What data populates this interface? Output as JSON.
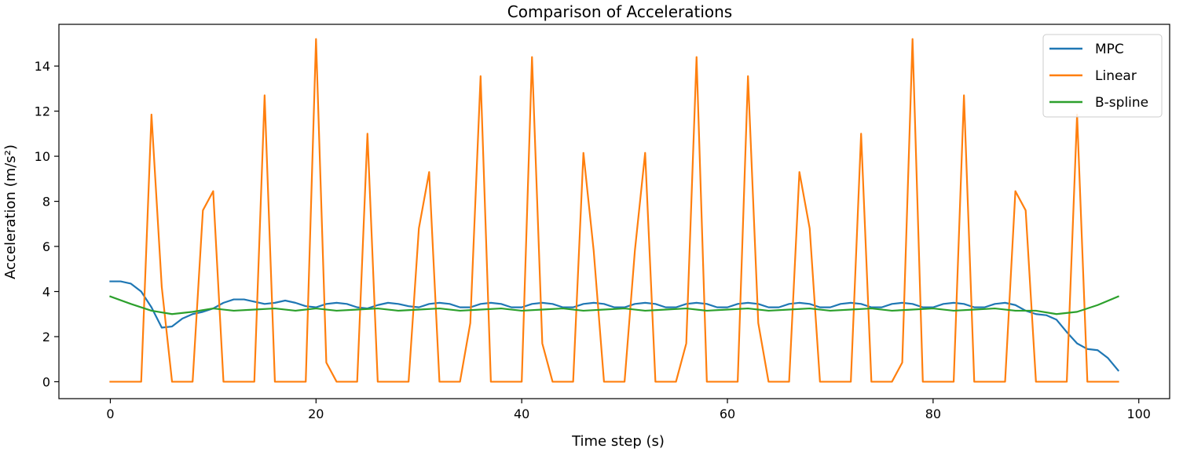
{
  "chart_data": {
    "type": "line",
    "title": "Comparison of Accelerations",
    "xlabel": "Time step (s)",
    "ylabel": "Acceleration (m/s²)",
    "xlim": [
      -5,
      103
    ],
    "ylim": [
      -0.75,
      15.85
    ],
    "xticks": [
      0,
      20,
      40,
      60,
      80,
      100
    ],
    "yticks": [
      0,
      2,
      4,
      6,
      8,
      10,
      12,
      14
    ],
    "grid": false,
    "legend_position": "top-right",
    "series": [
      {
        "name": "MPC",
        "color": "#1f77b4",
        "x": [
          0,
          1,
          2,
          3,
          4,
          5,
          6,
          7,
          8,
          9,
          10,
          11,
          12,
          13,
          14,
          15,
          16,
          17,
          18,
          19,
          20,
          21,
          22,
          23,
          24,
          25,
          26,
          27,
          28,
          29,
          30,
          31,
          32,
          33,
          34,
          35,
          36,
          37,
          38,
          39,
          40,
          41,
          42,
          43,
          44,
          45,
          46,
          47,
          48,
          49,
          50,
          51,
          52,
          53,
          54,
          55,
          56,
          57,
          58,
          59,
          60,
          61,
          62,
          63,
          64,
          65,
          66,
          67,
          68,
          69,
          70,
          71,
          72,
          73,
          74,
          75,
          76,
          77,
          78,
          79,
          80,
          81,
          82,
          83,
          84,
          85,
          86,
          87,
          88,
          89,
          90,
          91,
          92,
          93,
          94,
          95,
          96,
          97,
          98
        ],
        "y": [
          4.45,
          4.45,
          4.35,
          4.0,
          3.3,
          2.4,
          2.45,
          2.8,
          3.0,
          3.1,
          3.25,
          3.5,
          3.65,
          3.65,
          3.55,
          3.45,
          3.5,
          3.6,
          3.5,
          3.35,
          3.3,
          3.45,
          3.5,
          3.45,
          3.3,
          3.25,
          3.4,
          3.5,
          3.45,
          3.35,
          3.3,
          3.45,
          3.5,
          3.45,
          3.3,
          3.3,
          3.45,
          3.5,
          3.45,
          3.3,
          3.3,
          3.45,
          3.5,
          3.45,
          3.3,
          3.3,
          3.45,
          3.5,
          3.45,
          3.3,
          3.3,
          3.45,
          3.5,
          3.45,
          3.3,
          3.3,
          3.45,
          3.5,
          3.45,
          3.3,
          3.3,
          3.45,
          3.5,
          3.45,
          3.3,
          3.3,
          3.45,
          3.5,
          3.45,
          3.3,
          3.3,
          3.45,
          3.5,
          3.45,
          3.3,
          3.3,
          3.45,
          3.5,
          3.45,
          3.3,
          3.3,
          3.45,
          3.5,
          3.45,
          3.3,
          3.3,
          3.45,
          3.5,
          3.4,
          3.15,
          3.0,
          2.95,
          2.75,
          2.2,
          1.7,
          1.45,
          1.4,
          1.05,
          0.5
        ]
      },
      {
        "name": "Linear",
        "color": "#ff7f0e",
        "x": [
          0,
          1,
          2,
          3,
          4,
          5,
          6,
          7,
          8,
          9,
          10,
          11,
          12,
          13,
          14,
          15,
          16,
          17,
          18,
          19,
          20,
          21,
          22,
          23,
          24,
          25,
          26,
          27,
          28,
          29,
          30,
          31,
          32,
          33,
          34,
          35,
          36,
          37,
          38,
          39,
          40,
          41,
          42,
          43,
          44,
          45,
          46,
          47,
          48,
          49,
          50,
          51,
          52,
          53,
          54,
          55,
          56,
          57,
          58,
          59,
          60,
          61,
          62,
          63,
          64,
          65,
          66,
          67,
          68,
          69,
          70,
          71,
          72,
          73,
          74,
          75,
          76,
          77,
          78,
          79,
          80,
          81,
          82,
          83,
          84,
          85,
          86,
          87,
          88,
          89,
          90,
          91,
          92,
          93,
          94,
          95,
          96,
          97,
          98
        ],
        "y": [
          0,
          0,
          0,
          0,
          11.85,
          4.2,
          0,
          0,
          0,
          7.6,
          8.45,
          0,
          0,
          0,
          0,
          12.7,
          0,
          0,
          0,
          0,
          15.2,
          0.85,
          0,
          0,
          0,
          11.0,
          0,
          0,
          0,
          0,
          6.8,
          9.3,
          0,
          0,
          0,
          2.6,
          13.55,
          0,
          0,
          0,
          0,
          14.4,
          1.7,
          0,
          0,
          0,
          10.15,
          5.8,
          0,
          0,
          0,
          5.8,
          10.15,
          0,
          0,
          0,
          1.7,
          14.4,
          0,
          0,
          0,
          0,
          13.55,
          2.6,
          0,
          0,
          0,
          9.3,
          6.8,
          0,
          0,
          0,
          0,
          11.0,
          0,
          0,
          0,
          0.85,
          15.2,
          0,
          0,
          0,
          0,
          12.7,
          0,
          0,
          0,
          0,
          8.45,
          7.6,
          0,
          0,
          0,
          0,
          11.85,
          0,
          0,
          0,
          0
        ]
      },
      {
        "name": "B-spline",
        "color": "#2ca02c",
        "x": [
          0,
          2,
          4,
          6,
          8,
          10,
          12,
          14,
          16,
          18,
          20,
          22,
          24,
          26,
          28,
          30,
          32,
          34,
          36,
          38,
          40,
          42,
          44,
          46,
          48,
          50,
          52,
          54,
          56,
          58,
          60,
          62,
          64,
          66,
          68,
          70,
          72,
          74,
          76,
          78,
          80,
          82,
          84,
          86,
          88,
          90,
          92,
          94,
          96,
          98
        ],
        "y": [
          3.78,
          3.45,
          3.15,
          3.0,
          3.1,
          3.25,
          3.15,
          3.2,
          3.25,
          3.15,
          3.25,
          3.15,
          3.2,
          3.25,
          3.15,
          3.2,
          3.25,
          3.15,
          3.2,
          3.25,
          3.15,
          3.2,
          3.25,
          3.15,
          3.2,
          3.25,
          3.15,
          3.2,
          3.25,
          3.15,
          3.2,
          3.25,
          3.15,
          3.2,
          3.25,
          3.15,
          3.2,
          3.25,
          3.15,
          3.2,
          3.25,
          3.15,
          3.2,
          3.25,
          3.15,
          3.15,
          3.0,
          3.1,
          3.4,
          3.78
        ]
      }
    ]
  }
}
